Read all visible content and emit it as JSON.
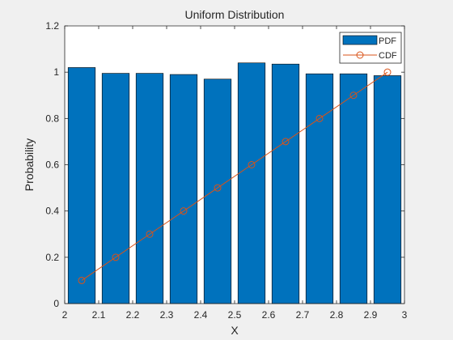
{
  "chart_data": {
    "type": "bar",
    "title": "Uniform Distribution",
    "xlabel": "X",
    "ylabel": "Probability",
    "xlim": [
      2,
      3
    ],
    "ylim": [
      0,
      1.2
    ],
    "xticks": [
      2,
      2.1,
      2.2,
      2.3,
      2.4,
      2.5,
      2.6,
      2.7,
      2.8,
      2.9,
      3
    ],
    "xtick_labels": [
      "2",
      "2.1",
      "2.2",
      "2.3",
      "2.4",
      "2.5",
      "2.6",
      "2.7",
      "2.8",
      "2.9",
      "3"
    ],
    "yticks": [
      0,
      0.2,
      0.4,
      0.6,
      0.8,
      1,
      1.2
    ],
    "ytick_labels": [
      "0",
      "0.2",
      "0.4",
      "0.6",
      "0.8",
      "1",
      "1.2"
    ],
    "x": [
      2.05,
      2.15,
      2.25,
      2.35,
      2.45,
      2.55,
      2.65,
      2.75,
      2.85,
      2.95
    ],
    "bar_width": 0.08,
    "series": [
      {
        "name": "PDF",
        "kind": "bar",
        "color": "#0072BD",
        "values": [
          1.02,
          0.995,
          0.995,
          0.99,
          0.97,
          1.04,
          1.035,
          0.993,
          0.993,
          0.985
        ]
      },
      {
        "name": "CDF",
        "kind": "line-markers",
        "marker": "circle",
        "color": "#D95319",
        "values": [
          0.1,
          0.2,
          0.3,
          0.4,
          0.5,
          0.6,
          0.7,
          0.8,
          0.9,
          1.0
        ]
      }
    ],
    "legend_location": "top-right",
    "grid": false
  }
}
